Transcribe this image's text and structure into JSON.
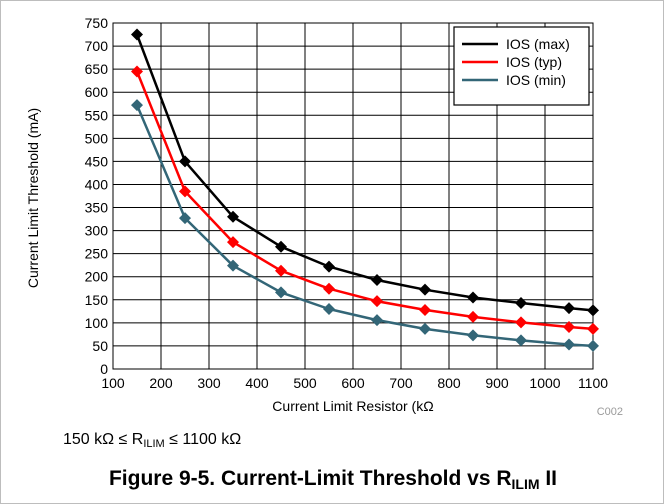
{
  "chart_data": {
    "type": "line",
    "title": "",
    "xlabel": "Current Limit Resistor (kΩ",
    "ylabel": "Current Limit Threshold (mA)",
    "xlim": [
      100,
      1100
    ],
    "ylim": [
      0,
      750
    ],
    "x_ticks": [
      "100",
      "200",
      "300",
      "400",
      "500",
      "600",
      "700",
      "800",
      "900",
      "1000",
      "1100"
    ],
    "y_ticks": [
      "0",
      "50",
      "100",
      "150",
      "200",
      "250",
      "300",
      "350",
      "400",
      "450",
      "500",
      "550",
      "600",
      "650",
      "700",
      "750"
    ],
    "grid": true,
    "legend_position": "top-right",
    "figure_code": "C002",
    "x": [
      150,
      250,
      350,
      450,
      550,
      650,
      750,
      850,
      950,
      1050,
      1100
    ],
    "series": [
      {
        "name": "IOS (max)",
        "color": "#000000",
        "values": [
          725,
          450,
          330,
          265,
          222,
          193,
          172,
          155,
          143,
          132,
          127
        ]
      },
      {
        "name": "IOS (typ)",
        "color": "#ff0000",
        "values": [
          645,
          385,
          275,
          213,
          174,
          147,
          128,
          113,
          101,
          91,
          87
        ]
      },
      {
        "name": "IOS (min)",
        "color": "#336677",
        "values": [
          572,
          327,
          224,
          166,
          130,
          106,
          87,
          73,
          62,
          53,
          50
        ]
      }
    ]
  },
  "note": {
    "prefix": "150 kΩ ≤ R",
    "sub": "ILIM",
    "suffix": " ≤ 1100 kΩ"
  },
  "caption": {
    "text": "Figure 9-5. Current-Limit Threshold vs R",
    "sub": "ILIM",
    "suffix": " II"
  }
}
